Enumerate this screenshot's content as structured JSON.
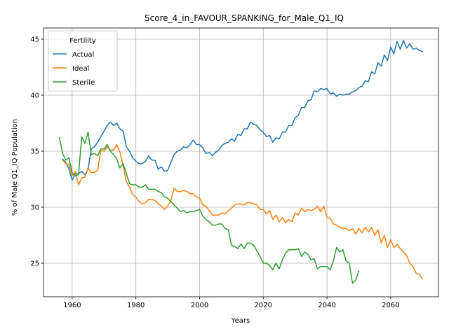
{
  "chart_data": {
    "type": "line",
    "title": "Score_4_in_FAVOUR_SPANKING_for_Male_Q1_IQ",
    "xlabel": "Years",
    "ylabel": "% of Male Q1_IQ Population",
    "xlim": [
      1951,
      2075
    ],
    "ylim": [
      22,
      46
    ],
    "xticks": [
      1960,
      1980,
      2000,
      2020,
      2040,
      2060
    ],
    "yticks": [
      25,
      30,
      35,
      40,
      45
    ],
    "grid": true,
    "legend": {
      "title": "Fertility",
      "placement": "upper-left"
    },
    "colors": {
      "Actual": "#1f77b4",
      "Ideal": "#ff7f0e",
      "Sterile": "#2ca02c"
    },
    "series": [
      {
        "name": "Actual",
        "x": [
          1957,
          1958,
          1959,
          1960,
          1961,
          1962,
          1963,
          1964,
          1965,
          1966,
          1967,
          1968,
          1969,
          1970,
          1971,
          1972,
          1973,
          1974,
          1975,
          1976,
          1977,
          1978,
          1979,
          1980,
          1981,
          1982,
          1983,
          1984,
          1985,
          1986,
          1987,
          1988,
          1989,
          1990,
          1991,
          1992,
          1993,
          1994,
          1995,
          1996,
          1997,
          1998,
          1999,
          2000,
          2001,
          2002,
          2003,
          2004,
          2005,
          2006,
          2007,
          2008,
          2009,
          2010,
          2011,
          2012,
          2013,
          2014,
          2015,
          2016,
          2017,
          2018,
          2019,
          2020,
          2021,
          2022,
          2023,
          2024,
          2025,
          2026,
          2027,
          2028,
          2029,
          2030,
          2031,
          2032,
          2033,
          2034,
          2035,
          2036,
          2037,
          2038,
          2039,
          2040,
          2041,
          2042,
          2043,
          2044,
          2045,
          2046,
          2047,
          2048,
          2049,
          2050,
          2051,
          2052,
          2053,
          2054,
          2055,
          2056,
          2057,
          2058,
          2059,
          2060,
          2061,
          2062,
          2063,
          2064,
          2065,
          2066,
          2067,
          2068,
          2069,
          2070
        ],
        "values": [
          34.3,
          34.0,
          33.4,
          32.4,
          33.0,
          33.0,
          33.2,
          32.9,
          33.4,
          35.2,
          35.4,
          35.8,
          36.3,
          36.8,
          37.3,
          37.6,
          37.3,
          37.5,
          37.0,
          36.8,
          35.4,
          35.0,
          34.4,
          34.1,
          33.9,
          33.9,
          34.1,
          34.6,
          34.2,
          34.2,
          33.4,
          33.6,
          33.2,
          33.3,
          34.0,
          34.7,
          35.0,
          35.1,
          35.4,
          35.3,
          35.6,
          36.0,
          35.6,
          35.6,
          35.3,
          34.8,
          34.9,
          34.6,
          34.9,
          35.1,
          35.5,
          35.7,
          35.8,
          36.1,
          35.9,
          36.5,
          36.4,
          37.0,
          37.0,
          37.6,
          37.4,
          37.3,
          36.9,
          36.7,
          36.3,
          36.4,
          35.8,
          36.2,
          36.1,
          36.7,
          36.7,
          37.3,
          37.3,
          38.0,
          38.2,
          38.9,
          38.9,
          39.5,
          39.6,
          40.4,
          40.3,
          40.6,
          40.5,
          40.6,
          40.1,
          40.2,
          39.9,
          40.1,
          40.0,
          40.1,
          40.1,
          40.3,
          40.4,
          40.7,
          40.8,
          41.3,
          41.2,
          42.1,
          41.9,
          42.9,
          42.6,
          43.6,
          43.1,
          44.3,
          43.7,
          44.8,
          44.1,
          44.9,
          44.2,
          44.6,
          44.1,
          44.2,
          44.0,
          43.9
        ]
      },
      {
        "name": "Ideal",
        "x": [
          1957,
          1958,
          1959,
          1960,
          1961,
          1962,
          1963,
          1964,
          1965,
          1966,
          1967,
          1968,
          1969,
          1970,
          1971,
          1972,
          1973,
          1974,
          1975,
          1976,
          1977,
          1978,
          1979,
          1980,
          1981,
          1982,
          1983,
          1984,
          1985,
          1986,
          1987,
          1988,
          1989,
          1990,
          1991,
          1992,
          1993,
          1994,
          1995,
          1996,
          1997,
          1998,
          1999,
          2000,
          2001,
          2002,
          2003,
          2004,
          2005,
          2006,
          2007,
          2008,
          2009,
          2010,
          2011,
          2012,
          2013,
          2014,
          2015,
          2016,
          2017,
          2018,
          2019,
          2020,
          2021,
          2022,
          2023,
          2024,
          2025,
          2026,
          2027,
          2028,
          2029,
          2030,
          2031,
          2032,
          2033,
          2034,
          2035,
          2036,
          2037,
          2038,
          2039,
          2040,
          2041,
          2042,
          2043,
          2044,
          2045,
          2046,
          2047,
          2048,
          2049,
          2050,
          2051,
          2052,
          2053,
          2054,
          2055,
          2056,
          2057,
          2058,
          2059,
          2060,
          2061,
          2062,
          2063,
          2064,
          2065,
          2066,
          2067,
          2068,
          2069,
          2070
        ],
        "values": [
          34.2,
          33.9,
          33.8,
          32.8,
          33.2,
          32.0,
          32.6,
          32.7,
          33.5,
          33.1,
          33.1,
          33.3,
          35.1,
          35.0,
          35.4,
          35.1,
          35.1,
          35.6,
          34.9,
          33.7,
          32.3,
          31.8,
          31.1,
          30.9,
          30.5,
          30.3,
          30.4,
          30.7,
          30.7,
          30.6,
          30.3,
          30.1,
          29.8,
          30.1,
          30.6,
          31.7,
          31.4,
          31.4,
          31.5,
          31.4,
          31.2,
          31.2,
          30.9,
          30.8,
          30.2,
          30.1,
          29.7,
          29.3,
          29.3,
          29.3,
          29.5,
          29.4,
          29.7,
          29.9,
          30.2,
          30.3,
          30.3,
          30.2,
          30.4,
          30.4,
          30.3,
          30.2,
          29.8,
          29.8,
          29.4,
          29.7,
          28.9,
          29.3,
          28.7,
          29.1,
          28.6,
          28.9,
          28.7,
          29.5,
          29.3,
          29.9,
          29.6,
          29.8,
          29.7,
          29.8,
          30.1,
          29.6,
          30.1,
          29.1,
          29.0,
          28.5,
          28.4,
          28.2,
          28.1,
          28.1,
          27.9,
          28.1,
          27.6,
          28.1,
          27.7,
          28.2,
          27.8,
          28.2,
          27.5,
          28.0,
          26.8,
          27.5,
          26.4,
          27.1,
          26.4,
          26.7,
          26.3,
          26.0,
          25.7,
          25.0,
          24.7,
          24.1,
          24.0,
          23.6
        ]
      },
      {
        "name": "Sterile",
        "x": [
          1956,
          1957,
          1958,
          1959,
          1960,
          1961,
          1962,
          1963,
          1964,
          1965,
          1966,
          1967,
          1968,
          1969,
          1970,
          1971,
          1972,
          1973,
          1974,
          1975,
          1976,
          1977,
          1978,
          1979,
          1980,
          1981,
          1982,
          1983,
          1984,
          1985,
          1986,
          1987,
          1988,
          1989,
          1990,
          1991,
          1992,
          1993,
          1994,
          1995,
          1996,
          1997,
          1998,
          1999,
          2000,
          2001,
          2002,
          2003,
          2004,
          2005,
          2006,
          2007,
          2008,
          2009,
          2010,
          2011,
          2012,
          2013,
          2014,
          2015,
          2016,
          2017,
          2018,
          2019,
          2020,
          2021,
          2022,
          2023,
          2024,
          2025,
          2026,
          2027,
          2028,
          2029,
          2030,
          2031,
          2032,
          2033,
          2034,
          2035,
          2036,
          2037,
          2038,
          2039,
          2040,
          2041,
          2042,
          2043,
          2044,
          2045,
          2046,
          2047,
          2048,
          2049,
          2050
        ],
        "values": [
          36.2,
          34.8,
          34.2,
          34.4,
          33.1,
          32.8,
          32.9,
          36.3,
          35.7,
          36.7,
          34.7,
          34.8,
          34.6,
          35.2,
          35.2,
          35.6,
          35.0,
          34.7,
          34.3,
          33.5,
          33.9,
          33.0,
          32.1,
          32.0,
          32.0,
          31.8,
          31.8,
          32.0,
          31.6,
          31.6,
          31.6,
          31.4,
          31.3,
          30.9,
          30.8,
          30.5,
          30.2,
          29.9,
          29.6,
          29.7,
          29.5,
          29.6,
          29.6,
          29.7,
          29.8,
          29.2,
          28.9,
          28.7,
          28.4,
          28.4,
          28.5,
          28.5,
          28.1,
          28.0,
          26.6,
          26.5,
          26.3,
          26.7,
          26.3,
          26.8,
          26.8,
          26.6,
          26.1,
          25.6,
          25.0,
          25.0,
          24.8,
          24.4,
          25.0,
          24.5,
          25.3,
          25.9,
          26.2,
          26.2,
          26.2,
          26.3,
          25.6,
          26.0,
          25.8,
          25.3,
          25.4,
          24.5,
          24.7,
          24.7,
          24.7,
          24.4,
          25.2,
          26.4,
          26.0,
          26.2,
          25.2,
          25.0,
          23.2,
          23.5,
          24.3
        ]
      }
    ]
  }
}
